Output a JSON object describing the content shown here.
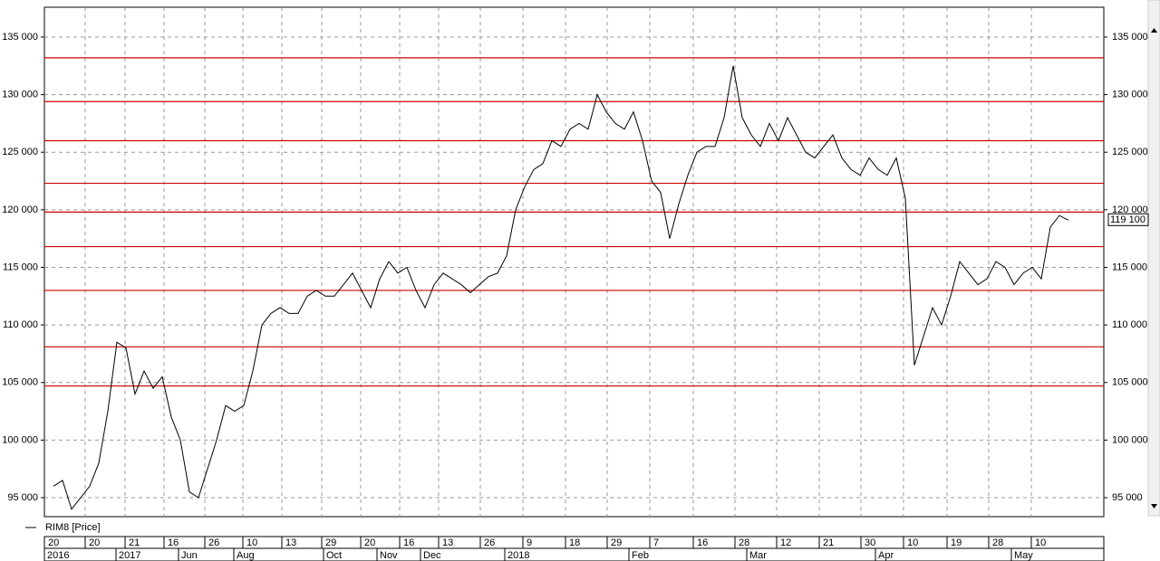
{
  "chart_data": {
    "type": "line",
    "series": [
      {
        "name": "RIM8 [Price]",
        "color": "#000000",
        "x": [
          1,
          2,
          3,
          4,
          5,
          6,
          7,
          8,
          9,
          10,
          11,
          12,
          13,
          14,
          15,
          16,
          17,
          18,
          19,
          20,
          21,
          22,
          23,
          24,
          25,
          26,
          27,
          28,
          29,
          30,
          31,
          32,
          33,
          34,
          35,
          36,
          37,
          38,
          39,
          40,
          41,
          42,
          43,
          44,
          45,
          46,
          47,
          48,
          49,
          50,
          51,
          52,
          53,
          54,
          55,
          56,
          57,
          58,
          59,
          60,
          61,
          62,
          63,
          64,
          65,
          66,
          67,
          68,
          69,
          70,
          71,
          72,
          73,
          74,
          75,
          76,
          77,
          78,
          79,
          80,
          81,
          82,
          83,
          84,
          85,
          86,
          87,
          88,
          89,
          90,
          91,
          92,
          93,
          94,
          95,
          96,
          97,
          98,
          99,
          100,
          101,
          102,
          103,
          104,
          105,
          106,
          107,
          108,
          109,
          110,
          111,
          112,
          113
        ],
        "values": [
          96000,
          96500,
          94000,
          95000,
          96000,
          98000,
          102500,
          108500,
          108000,
          104000,
          106000,
          104500,
          105500,
          102000,
          100000,
          95500,
          95000,
          97500,
          100000,
          103000,
          102500,
          103000,
          106000,
          110000,
          111000,
          111500,
          111000,
          111000,
          112500,
          113000,
          112500,
          112500,
          113500,
          114500,
          113000,
          111500,
          114000,
          115500,
          114500,
          115000,
          113000,
          111500,
          113500,
          114500,
          114000,
          113500,
          112800,
          113500,
          114200,
          114500,
          116000,
          120000,
          122000,
          123500,
          124000,
          126000,
          125500,
          127000,
          127500,
          127000,
          130000,
          128500,
          127500,
          127000,
          128500,
          126000,
          122500,
          121500,
          117500,
          120500,
          123000,
          125000,
          125500,
          125500,
          128000,
          132500,
          128000,
          126500,
          125500,
          127500,
          126000,
          128000,
          126500,
          125000,
          124500,
          125500,
          126500,
          124500,
          123500,
          123000,
          124500,
          123500,
          123000,
          124500,
          121000,
          106500,
          109000,
          111500,
          110000,
          112500,
          115500,
          114500,
          113500,
          114000,
          115500,
          115000,
          113500,
          114500,
          115000,
          114000,
          118500,
          119500,
          119100
        ]
      }
    ],
    "last_price": {
      "value": 119100,
      "label": "119 100"
    },
    "levels": [
      133200,
      129400,
      126000,
      122300,
      119800,
      116800,
      113000,
      108100,
      104700
    ],
    "level_color": "#cc0000",
    "xlim": [
      0,
      116.9
    ],
    "ylim": [
      93350,
      137590
    ],
    "yticks": [
      {
        "value": 95000,
        "label": "95 000"
      },
      {
        "value": 100000,
        "label": "100 000"
      },
      {
        "value": 105000,
        "label": "105 000"
      },
      {
        "value": 110000,
        "label": "110 000"
      },
      {
        "value": 115000,
        "label": "115 000"
      },
      {
        "value": 120000,
        "label": "120 000"
      },
      {
        "value": 125000,
        "label": "125 000"
      },
      {
        "value": 130000,
        "label": "130 000"
      },
      {
        "value": 135000,
        "label": "135 000"
      }
    ],
    "xticks": [
      {
        "value": 0,
        "label": "20"
      },
      {
        "value": 4.5,
        "label": "20"
      },
      {
        "value": 8.9,
        "label": "21"
      },
      {
        "value": 13.2,
        "label": "16"
      },
      {
        "value": 17.7,
        "label": "26"
      },
      {
        "value": 21.9,
        "label": "10"
      },
      {
        "value": 26.2,
        "label": "13"
      },
      {
        "value": 30.6,
        "label": "29"
      },
      {
        "value": 34.9,
        "label": "20"
      },
      {
        "value": 39.2,
        "label": "16"
      },
      {
        "value": 43.5,
        "label": "13"
      },
      {
        "value": 48.1,
        "label": "26"
      },
      {
        "value": 52.8,
        "label": "9"
      },
      {
        "value": 57.5,
        "label": "18"
      },
      {
        "value": 62.1,
        "label": "29"
      },
      {
        "value": 66.8,
        "label": "7"
      },
      {
        "value": 71.6,
        "label": "16"
      },
      {
        "value": 76.2,
        "label": "28"
      },
      {
        "value": 80.8,
        "label": "12"
      },
      {
        "value": 85.5,
        "label": "21"
      },
      {
        "value": 90.1,
        "label": "30"
      },
      {
        "value": 94.8,
        "label": "10"
      },
      {
        "value": 99.6,
        "label": "19"
      },
      {
        "value": 104.2,
        "label": "28"
      },
      {
        "value": 108.9,
        "label": "10"
      }
    ],
    "month_ticks": [
      {
        "value": 0,
        "label": "2016"
      },
      {
        "value": 7.9,
        "label": "2017"
      },
      {
        "value": 14.8,
        "label": "Jun"
      },
      {
        "value": 20.9,
        "label": "Aug"
      },
      {
        "value": 30.8,
        "label": "Oct"
      },
      {
        "value": 36.7,
        "label": "Nov"
      },
      {
        "value": 41.5,
        "label": "Dec"
      },
      {
        "value": 50.8,
        "label": "2018"
      },
      {
        "value": 64.5,
        "label": "Feb"
      },
      {
        "value": 77.5,
        "label": "Mar"
      },
      {
        "value": 91.7,
        "label": "Apr"
      },
      {
        "value": 106.7,
        "label": "May"
      }
    ],
    "grid": true
  }
}
